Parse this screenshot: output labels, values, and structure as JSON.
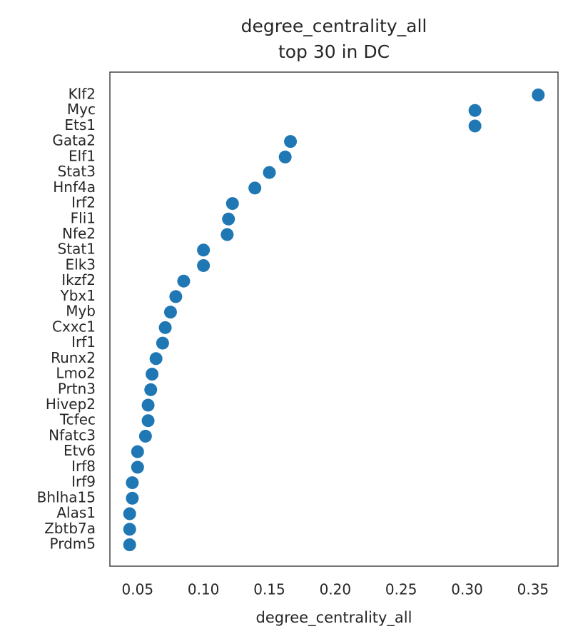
{
  "chart_data": {
    "type": "dot",
    "title": [
      "degree_centrality_all",
      "top 30 in DC"
    ],
    "x_label": "degree_centrality_all",
    "categories": [
      "Klf2",
      "Myc",
      "Ets1",
      "Gata2",
      "Elf1",
      "Stat3",
      "Hnf4a",
      "Irf2",
      "Fli1",
      "Nfe2",
      "Stat1",
      "Elk3",
      "Ikzf2",
      "Ybx1",
      "Myb",
      "Cxxc1",
      "Irf1",
      "Runx2",
      "Lmo2",
      "Prtn3",
      "Hivep2",
      "Tcfec",
      "Nfatc3",
      "Etv6",
      "Irf8",
      "Irf9",
      "Bhlha15",
      "Alas1",
      "Zbtb7a",
      "Prdm5"
    ],
    "values": [
      0.354,
      0.306,
      0.306,
      0.166,
      0.162,
      0.15,
      0.139,
      0.122,
      0.119,
      0.118,
      0.1,
      0.1,
      0.085,
      0.079,
      0.075,
      0.071,
      0.069,
      0.064,
      0.061,
      0.06,
      0.058,
      0.058,
      0.056,
      0.05,
      0.05,
      0.046,
      0.046,
      0.044,
      0.044,
      0.044
    ],
    "color": "#1f77b4",
    "xlim": [
      0.029,
      0.369
    ],
    "xticks": [
      0.05,
      {
        "value": 0.1,
        "label": "0.10"
      },
      0.15,
      {
        "value": 0.2,
        "label": "0.20"
      },
      0.25,
      {
        "value": 0.3,
        "label": "0.30"
      },
      0.35
    ],
    "grid": false
  }
}
